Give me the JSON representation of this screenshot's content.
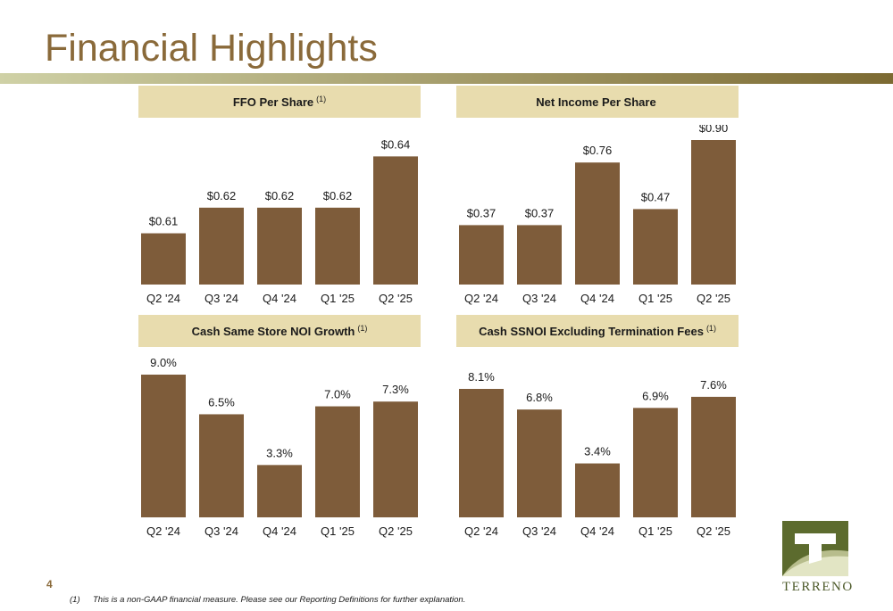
{
  "page": {
    "title": "Financial Highlights",
    "page_number": "4",
    "footnote_marker": "(1)",
    "footnote_text": "This is a non-GAAP financial measure. Please see our Reporting Definitions for further explanation.",
    "logo_text": "TERRENO"
  },
  "colors": {
    "bar": "#7e5c3a",
    "title": "#8a6a3a",
    "header_bg": "#e8dcae",
    "rule_left": "#cfd1a6",
    "rule_right": "#7c6a32",
    "logo_green": "#5c6b2e"
  },
  "chart_data": [
    {
      "type": "bar",
      "title": "FFO Per Share",
      "title_note": "(1)",
      "categories": [
        "Q2 '24",
        "Q3 '24",
        "Q4 '24",
        "Q1 '25",
        "Q2 '25"
      ],
      "values": [
        0.61,
        0.62,
        0.62,
        0.62,
        0.64
      ],
      "data_labels": [
        "$0.61",
        "$0.62",
        "$0.62",
        "$0.62",
        "$0.64"
      ],
      "ylim": [
        0.59,
        0.645
      ]
    },
    {
      "type": "bar",
      "title": "Net Income Per Share",
      "title_note": "",
      "categories": [
        "Q2 '24",
        "Q3 '24",
        "Q4 '24",
        "Q1 '25",
        "Q2 '25"
      ],
      "values": [
        0.37,
        0.37,
        0.76,
        0.47,
        0.9
      ],
      "data_labels": [
        "$0.37",
        "$0.37",
        "$0.76",
        "$0.47",
        "$0.90"
      ],
      "ylim": [
        0,
        1.0
      ]
    },
    {
      "type": "bar",
      "title": "Cash Same Store NOI Growth",
      "title_note": "(1)",
      "categories": [
        "Q2 '24",
        "Q3 '24",
        "Q4 '24",
        "Q1 '25",
        "Q2 '25"
      ],
      "values": [
        9.0,
        6.5,
        3.3,
        7.0,
        7.3
      ],
      "data_labels": [
        "9.0%",
        "6.5%",
        "3.3%",
        "7.0%",
        "7.3%"
      ],
      "ylim": [
        0,
        9.0
      ]
    },
    {
      "type": "bar",
      "title": "Cash SSNOI Excluding Termination Fees",
      "title_note": "(1)",
      "categories": [
        "Q2 '24",
        "Q3 '24",
        "Q4 '24",
        "Q1 '25",
        "Q2 '25"
      ],
      "values": [
        8.1,
        6.8,
        3.4,
        6.9,
        7.6
      ],
      "data_labels": [
        "8.1%",
        "6.8%",
        "3.4%",
        "6.9%",
        "7.6%"
      ],
      "ylim": [
        0,
        8.1
      ]
    }
  ]
}
